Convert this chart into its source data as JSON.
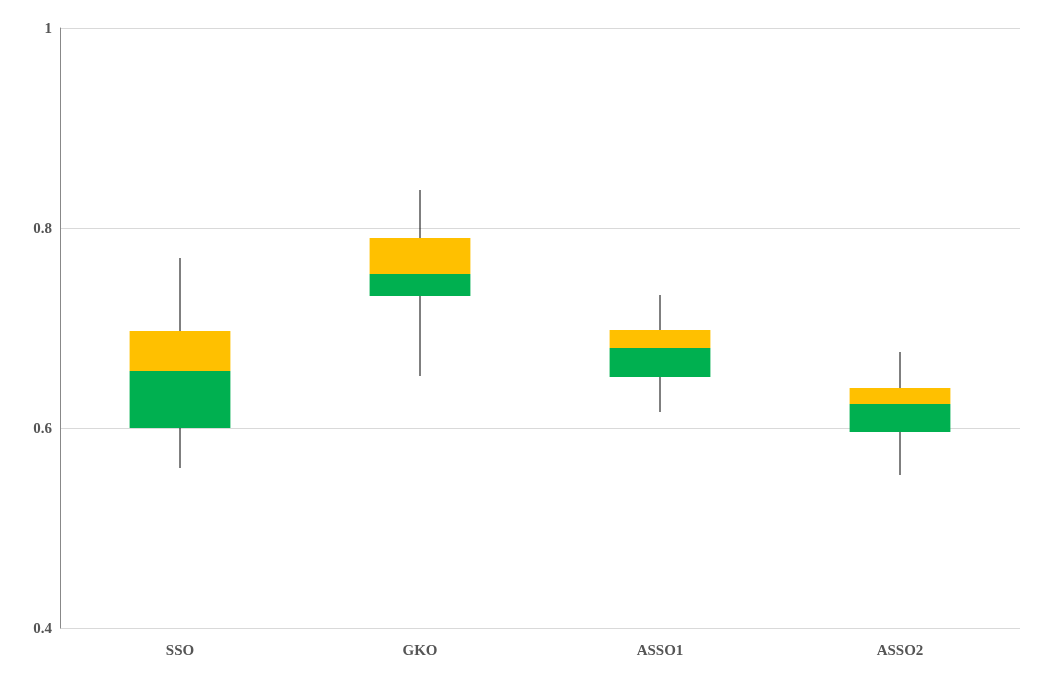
{
  "chart_data": {
    "type": "box",
    "categories": [
      "SSO",
      "GKO",
      "ASSO1",
      "ASSO2"
    ],
    "boxes": [
      {
        "low": 0.56,
        "q1": 0.6,
        "median": 0.657,
        "q3": 0.697,
        "high": 0.77
      },
      {
        "low": 0.652,
        "q1": 0.732,
        "median": 0.754,
        "q3": 0.79,
        "high": 0.838
      },
      {
        "low": 0.616,
        "q1": 0.651,
        "median": 0.68,
        "q3": 0.698,
        "high": 0.733
      },
      {
        "low": 0.553,
        "q1": 0.596,
        "median": 0.624,
        "q3": 0.64,
        "high": 0.676
      }
    ],
    "colors": [
      [
        "#00b050",
        "#ffc000"
      ],
      [
        "#00b050",
        "#ffc000"
      ],
      [
        "#00b050",
        "#ffc000"
      ],
      [
        "#00b050",
        "#ffc000"
      ]
    ],
    "ylim": [
      0.4,
      1
    ],
    "yticks": [
      0.4,
      0.6,
      0.8,
      1
    ],
    "grid": "y"
  }
}
